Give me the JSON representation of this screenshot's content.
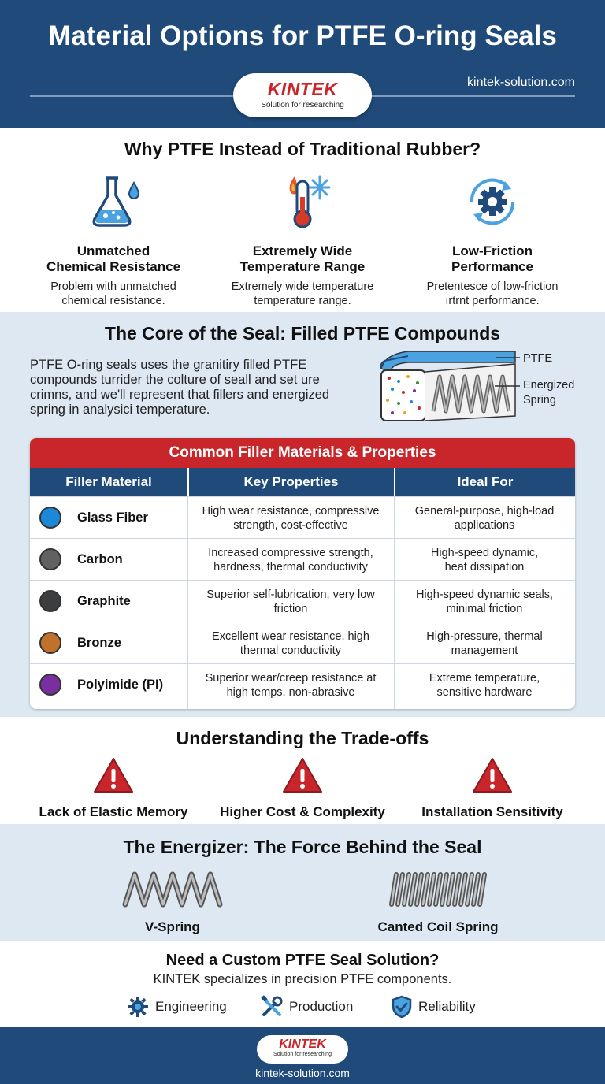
{
  "header": {
    "title": "Material Options for PTFE O-ring Seals",
    "logo_name": "KINTEK",
    "logo_tagline": "Solution for researching",
    "url": "kintek-solution.com"
  },
  "why": {
    "title": "Why PTFE Instead of Traditional Rubber?",
    "items": [
      {
        "icon": "flask-icon",
        "heading_line1": "Unmatched",
        "heading_line2": "Chemical Resistance",
        "desc_line1": "Problem with unmatched",
        "desc_line2": "chemical resistance."
      },
      {
        "icon": "thermometer-icon",
        "heading_line1": "Extremely Wide",
        "heading_line2": "Temperature Range",
        "desc_line1": "Extremely wide temperature",
        "desc_line2": "temperature range."
      },
      {
        "icon": "gear-cycle-icon",
        "heading_line1": "Low-Friction",
        "heading_line2": "Performance",
        "desc_line1": "Pretentesce of low-friction",
        "desc_line2": "ırtrnt performance."
      }
    ]
  },
  "core": {
    "title": "The Core of the Seal: Filled PTFE Compounds",
    "text_lines": [
      "PTFE O-ring seals uses the granitiry filled PTFE",
      "compounds turrider the colture of seall and set ure",
      "crimns, and we'll represent that fillers and energized",
      "spring in analysici temperature."
    ],
    "diagram_label_ptfe": "PTFE",
    "diagram_label_spring_1": "Energized",
    "diagram_label_spring_2": "Spring"
  },
  "table": {
    "title": "Common Filler Materials & Properties",
    "headers": [
      "Filler Material",
      "Key Properties",
      "Ideal For"
    ],
    "rows": [
      {
        "material": "Glass Fiber",
        "color": "#1e88d8",
        "props_1": "High wear resistance, compressive",
        "props_2": "strength, cost-effective",
        "ideal_1": "General-purpose, high-load",
        "ideal_2": "applications"
      },
      {
        "material": "Carbon",
        "color": "#5f6163",
        "props_1": "Increased compressive strength,",
        "props_2": "hardness, thermal conductivity",
        "ideal_1": "High-speed dynamic,",
        "ideal_2": "heat dissipation"
      },
      {
        "material": "Graphite",
        "color": "#3c3d3f",
        "props_1": "Superior self-lubrication, very low",
        "props_2": "friction",
        "ideal_1": "High-speed dynamic seals,",
        "ideal_2": "minimal friction"
      },
      {
        "material": "Bronze",
        "color": "#c0712c",
        "props_1": "Excellent wear resistance, high",
        "props_2": "thermal conductivity",
        "ideal_1": "High-pressure, thermal",
        "ideal_2": "management"
      },
      {
        "material": "Polyimide (PI)",
        "color": "#7a2fa0",
        "props_1": "Superior wear/creep resistance at",
        "props_2": "high temps, non-abrasive",
        "ideal_1": "Extreme temperature,",
        "ideal_2": "sensitive hardware"
      }
    ]
  },
  "tradeoffs": {
    "title": "Understanding the Trade-offs",
    "items": [
      "Lack of Elastic Memory",
      "Higher Cost & Complexity",
      "Installation Sensitivity"
    ]
  },
  "energizer": {
    "title": "The Energizer: The Force Behind the Seal",
    "springs": [
      "V-Spring",
      "Canted Coil Spring"
    ]
  },
  "custom": {
    "title": "Need a Custom PTFE Seal Solution?",
    "subtitle": "KINTEK specializes in precision PTFE components.",
    "features": [
      "Engineering",
      "Production",
      "Reliability"
    ]
  },
  "footer": {
    "logo_name": "KINTEK",
    "logo_tagline": "Solution for researching",
    "url": "kintek-solution.com"
  },
  "colors": {
    "navy": "#1f4a7a",
    "red": "#c8262b",
    "light_blue_bg": "#dde8f2"
  }
}
